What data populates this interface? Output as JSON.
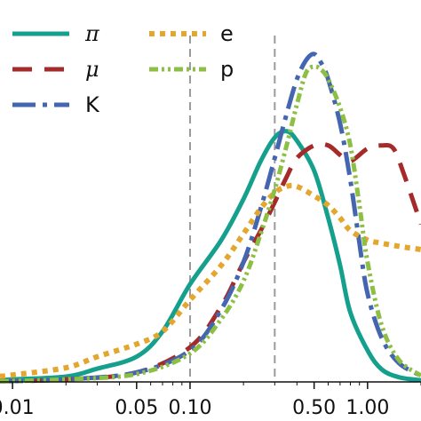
{
  "chart_data": {
    "type": "line",
    "x_scale": "log",
    "xlim": [
      0.0085,
      2.0
    ],
    "ylim": [
      0,
      1.0
    ],
    "grid": false,
    "legend_position": "top-left",
    "x_tick_labels": [
      {
        "value": 0.01,
        "label": "0.01"
      },
      {
        "value": 0.05,
        "label": "0.05"
      },
      {
        "value": 0.1,
        "label": "0.10"
      },
      {
        "value": 0.5,
        "label": "0.50"
      },
      {
        "value": 1.0,
        "label": "1.00"
      }
    ],
    "vlines": [
      {
        "x": 0.1,
        "color": "#9a9a9a",
        "style": "dashed"
      },
      {
        "x": 0.3,
        "color": "#9a9a9a",
        "style": "dashed"
      }
    ],
    "series": [
      {
        "name": "π",
        "color": "#14a08c",
        "dash": "none",
        "width": 5,
        "points": [
          [
            0.0085,
            0.005
          ],
          [
            0.01,
            0.008
          ],
          [
            0.02,
            0.017
          ],
          [
            0.03,
            0.042
          ],
          [
            0.05,
            0.08
          ],
          [
            0.07,
            0.16
          ],
          [
            0.1,
            0.31
          ],
          [
            0.15,
            0.45
          ],
          [
            0.2,
            0.58
          ],
          [
            0.25,
            0.7
          ],
          [
            0.3,
            0.775
          ],
          [
            0.35,
            0.795
          ],
          [
            0.4,
            0.765
          ],
          [
            0.5,
            0.67
          ],
          [
            0.6,
            0.52
          ],
          [
            0.7,
            0.37
          ],
          [
            0.8,
            0.22
          ],
          [
            1.0,
            0.1
          ],
          [
            1.2,
            0.04
          ],
          [
            1.5,
            0.015
          ],
          [
            2.0,
            0.005
          ]
        ]
      },
      {
        "name": "μ",
        "color": "#a52a2a",
        "dash": "22 14",
        "width": 5,
        "points": [
          [
            0.0085,
            0.002
          ],
          [
            0.02,
            0.008
          ],
          [
            0.05,
            0.03
          ],
          [
            0.1,
            0.11
          ],
          [
            0.15,
            0.24
          ],
          [
            0.2,
            0.38
          ],
          [
            0.25,
            0.48
          ],
          [
            0.3,
            0.57
          ],
          [
            0.35,
            0.65
          ],
          [
            0.4,
            0.71
          ],
          [
            0.5,
            0.75
          ],
          [
            0.6,
            0.75
          ],
          [
            0.7,
            0.72
          ],
          [
            0.8,
            0.7
          ],
          [
            1.0,
            0.74
          ],
          [
            1.2,
            0.75
          ],
          [
            1.4,
            0.74
          ],
          [
            1.6,
            0.66
          ],
          [
            2.0,
            0.5
          ]
        ]
      },
      {
        "name": "K",
        "color": "#4466b0",
        "dash": "26 8 5 8",
        "width": 5,
        "points": [
          [
            0.0085,
            0.002
          ],
          [
            0.02,
            0.008
          ],
          [
            0.05,
            0.03
          ],
          [
            0.1,
            0.1
          ],
          [
            0.15,
            0.23
          ],
          [
            0.2,
            0.38
          ],
          [
            0.25,
            0.55
          ],
          [
            0.3,
            0.71
          ],
          [
            0.35,
            0.85
          ],
          [
            0.4,
            0.96
          ],
          [
            0.45,
            1.02
          ],
          [
            0.5,
            1.04
          ],
          [
            0.55,
            1.01
          ],
          [
            0.6,
            0.96
          ],
          [
            0.7,
            0.82
          ],
          [
            0.8,
            0.64
          ],
          [
            0.9,
            0.44
          ],
          [
            1.0,
            0.28
          ],
          [
            1.2,
            0.14
          ],
          [
            1.5,
            0.06
          ],
          [
            2.0,
            0.02
          ]
        ]
      },
      {
        "name": "e",
        "color": "#e3a72f",
        "dash": "6 6",
        "width": 6,
        "points": [
          [
            0.0085,
            0.018
          ],
          [
            0.01,
            0.022
          ],
          [
            0.02,
            0.045
          ],
          [
            0.03,
            0.08
          ],
          [
            0.05,
            0.12
          ],
          [
            0.07,
            0.16
          ],
          [
            0.1,
            0.26
          ],
          [
            0.15,
            0.37
          ],
          [
            0.2,
            0.47
          ],
          [
            0.25,
            0.55
          ],
          [
            0.3,
            0.6
          ],
          [
            0.35,
            0.62
          ],
          [
            0.4,
            0.62
          ],
          [
            0.5,
            0.59
          ],
          [
            0.6,
            0.56
          ],
          [
            0.7,
            0.52
          ],
          [
            0.8,
            0.48
          ],
          [
            1.0,
            0.45
          ],
          [
            1.2,
            0.44
          ],
          [
            1.5,
            0.43
          ],
          [
            2.0,
            0.42
          ]
        ]
      },
      {
        "name": "p",
        "color": "#8dbf45",
        "dash": "10 4 3 4 3 4",
        "width": 5,
        "points": [
          [
            0.0085,
            0.002
          ],
          [
            0.02,
            0.008
          ],
          [
            0.05,
            0.025
          ],
          [
            0.1,
            0.09
          ],
          [
            0.15,
            0.2
          ],
          [
            0.2,
            0.32
          ],
          [
            0.25,
            0.47
          ],
          [
            0.3,
            0.61
          ],
          [
            0.35,
            0.75
          ],
          [
            0.4,
            0.88
          ],
          [
            0.45,
            0.98
          ],
          [
            0.5,
            1.0
          ],
          [
            0.55,
            0.99
          ],
          [
            0.6,
            0.96
          ],
          [
            0.7,
            0.87
          ],
          [
            0.8,
            0.75
          ],
          [
            0.9,
            0.56
          ],
          [
            1.0,
            0.38
          ],
          [
            1.2,
            0.18
          ],
          [
            1.5,
            0.07
          ],
          [
            2.0,
            0.02
          ]
        ]
      }
    ]
  }
}
